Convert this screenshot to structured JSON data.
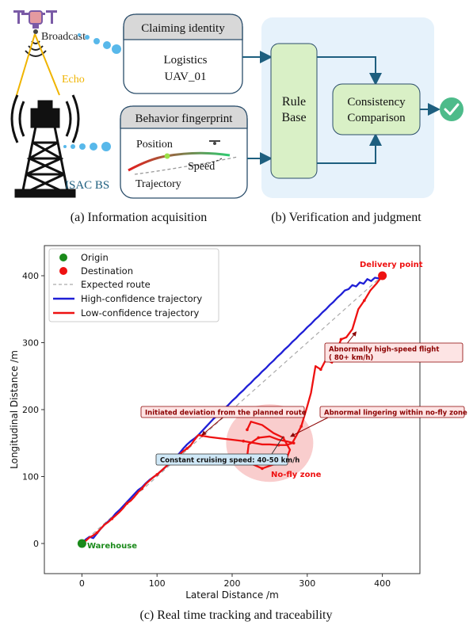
{
  "panel_a": {
    "broadcast": "Broadcast",
    "echo": "Echo",
    "isac_bs": "ISAC BS",
    "claiming_identity": {
      "title": "Claiming identity",
      "line1": "Logistics",
      "line2": "UAV_01"
    },
    "behavior_fingerprint": {
      "title": "Behavior fingerprint",
      "position": "Position",
      "speed": "Speed",
      "trajectory": "Trajectory"
    },
    "caption": "(a) Information acquisition"
  },
  "panel_b": {
    "rule_base_line1": "Rule",
    "rule_base_line2": "Base",
    "consistency_line1": "Consistency",
    "consistency_line2": "Comparison",
    "caption": "(b) Verification and judgment",
    "colors": {
      "bg": "#e6f2fb",
      "box": "#d9f0c6",
      "check": "#4dbb8a"
    }
  },
  "panel_c": {
    "caption": "(c) Real time tracking and traceability",
    "chart_data": {
      "type": "line",
      "xlabel": "Lateral Distance /m",
      "ylabel": "Longitudinal Distance /m",
      "xlim": [
        -50,
        450
      ],
      "ylim": [
        -45,
        445
      ],
      "xticks": [
        "0",
        "100",
        "200",
        "300",
        "400"
      ],
      "yticks": [
        "0",
        "100",
        "200",
        "300",
        "400"
      ],
      "legend": {
        "placement": "top-left",
        "entries": [
          "Origin",
          "Destination",
          "Expected route",
          "High-confidence trajectory",
          "Low-confidence trajectory"
        ]
      },
      "origin": {
        "x": 0,
        "y": 0,
        "label": "Warehouse",
        "color": "#1a8a1a"
      },
      "destination": {
        "x": 400,
        "y": 400,
        "label": "Delivery point",
        "color": "#ee1111"
      },
      "no_fly_zone": {
        "x": 250,
        "y": 150,
        "r": 58,
        "label": "No-fly zone"
      },
      "series": [
        {
          "color": "#1f1fd6",
          "points": [
            [
              0,
              0
            ],
            [
              5,
              6
            ],
            [
              10,
              10
            ],
            [
              15,
              8
            ],
            [
              20,
              15
            ],
            [
              25,
              22
            ],
            [
              30,
              28
            ],
            [
              35,
              33
            ],
            [
              40,
              38
            ],
            [
              45,
              45
            ],
            [
              50,
              50
            ],
            [
              55,
              56
            ],
            [
              60,
              62
            ],
            [
              65,
              68
            ],
            [
              70,
              74
            ],
            [
              75,
              80
            ],
            [
              80,
              84
            ],
            [
              85,
              90
            ],
            [
              90,
              95
            ],
            [
              95,
              99
            ],
            [
              100,
              103
            ],
            [
              105,
              108
            ],
            [
              110,
              113
            ],
            [
              115,
              118
            ],
            [
              120,
              124
            ],
            [
              125,
              129
            ],
            [
              130,
              135
            ],
            [
              135,
              142
            ],
            [
              140,
              148
            ],
            [
              145,
              153
            ],
            [
              150,
              157
            ],
            [
              155,
              162
            ],
            [
              160,
              168
            ],
            [
              165,
              174
            ],
            [
              170,
              180
            ],
            [
              175,
              186
            ],
            [
              180,
              191
            ],
            [
              185,
              197
            ],
            [
              190,
              202
            ],
            [
              195,
              207
            ],
            [
              200,
              213
            ],
            [
              205,
              218
            ],
            [
              210,
              224
            ],
            [
              215,
              229
            ],
            [
              220,
              235
            ],
            [
              225,
              240
            ],
            [
              230,
              246
            ],
            [
              235,
              251
            ],
            [
              240,
              257
            ],
            [
              245,
              262
            ],
            [
              250,
              268
            ],
            [
              255,
              273
            ],
            [
              260,
              279
            ],
            [
              265,
              284
            ],
            [
              270,
              290
            ],
            [
              275,
              295
            ],
            [
              280,
              301
            ],
            [
              285,
              306
            ],
            [
              290,
              312
            ],
            [
              295,
              317
            ],
            [
              300,
              323
            ],
            [
              305,
              328
            ],
            [
              310,
              334
            ],
            [
              315,
              339
            ],
            [
              320,
              345
            ],
            [
              325,
              350
            ],
            [
              330,
              356
            ],
            [
              335,
              361
            ],
            [
              340,
              367
            ],
            [
              345,
              372
            ],
            [
              350,
              378
            ],
            [
              355,
              380
            ],
            [
              360,
              386
            ],
            [
              365,
              384
            ],
            [
              370,
              390
            ],
            [
              375,
              388
            ],
            [
              380,
              395
            ],
            [
              385,
              392
            ],
            [
              390,
              397
            ],
            [
              395,
              396
            ],
            [
              400,
              400
            ]
          ]
        },
        {
          "color": "#ee1111",
          "points": [
            [
              0,
              0
            ],
            [
              5,
              4
            ],
            [
              10,
              9
            ],
            [
              15,
              12
            ],
            [
              20,
              16
            ],
            [
              25,
              22
            ],
            [
              30,
              28
            ],
            [
              35,
              32
            ],
            [
              40,
              37
            ],
            [
              45,
              42
            ],
            [
              50,
              47
            ],
            [
              55,
              53
            ],
            [
              60,
              60
            ],
            [
              65,
              64
            ],
            [
              70,
              70
            ],
            [
              75,
              77
            ],
            [
              80,
              82
            ],
            [
              85,
              89
            ],
            [
              90,
              94
            ],
            [
              95,
              99
            ],
            [
              100,
              103
            ],
            [
              105,
              108
            ],
            [
              110,
              113
            ],
            [
              115,
              118
            ],
            [
              120,
              122
            ],
            [
              125,
              127
            ],
            [
              130,
              133
            ],
            [
              135,
              138
            ],
            [
              140,
              142
            ],
            [
              145,
              147
            ],
            [
              150,
              155
            ],
            [
              155,
              162
            ],
            [
              160,
              161
            ],
            [
              170,
              159
            ],
            [
              185,
              157
            ],
            [
              200,
              155
            ],
            [
              215,
              153
            ],
            [
              230,
              150
            ],
            [
              240,
              148
            ],
            [
              250,
              148
            ],
            [
              262,
              147
            ],
            [
              272,
              147
            ],
            [
              280,
              150
            ],
            [
              285,
              160
            ],
            [
              292,
              175
            ],
            [
              300,
              205
            ],
            [
              305,
              225
            ],
            [
              311,
              265
            ],
            [
              318,
              260
            ],
            [
              325,
              275
            ],
            [
              333,
              270
            ],
            [
              340,
              290
            ],
            [
              345,
              305
            ],
            [
              352,
              308
            ],
            [
              360,
              320
            ],
            [
              368,
              350
            ],
            [
              376,
              363
            ],
            [
              384,
              378
            ],
            [
              392,
              388
            ],
            [
              400,
              400
            ]
          ]
        },
        {
          "color": "#ee1111",
          "points": [
            [
              220,
              170
            ],
            [
              225,
              182
            ],
            [
              240,
              177
            ],
            [
              255,
              165
            ],
            [
              268,
              158
            ],
            [
              277,
              140
            ],
            [
              270,
              120
            ],
            [
              255,
              118
            ],
            [
              240,
              112
            ],
            [
              228,
              118
            ],
            [
              220,
              130
            ],
            [
              222,
              148
            ],
            [
              235,
              158
            ],
            [
              250,
              160
            ],
            [
              262,
              155
            ],
            [
              275,
              152
            ],
            [
              282,
              150
            ]
          ]
        }
      ],
      "expected_route": {
        "color": "#aaaaaa",
        "points": [
          [
            0,
            0
          ],
          [
            400,
            400
          ]
        ]
      },
      "annotations": [
        {
          "text": "Abnormally high-speed flight",
          "text2": "( 80+ km/h)",
          "kind": "red",
          "x": 365,
          "y": 316
        },
        {
          "text": "Initiated deviation from the planned route",
          "kind": "red",
          "x": 160,
          "y": 162
        },
        {
          "text": "Abnormal lingering within no-fly zone",
          "kind": "red",
          "x": 278,
          "y": 160
        },
        {
          "text": "Constant cruising speed: 40-50 km/h",
          "kind": "blue",
          "x": 268,
          "y": 160
        }
      ]
    }
  }
}
